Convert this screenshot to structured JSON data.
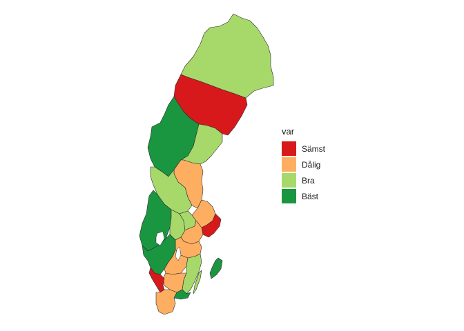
{
  "legend": {
    "title": "var",
    "items": [
      {
        "label": "Sämst",
        "color": "#d7191c"
      },
      {
        "label": "Dålig",
        "color": "#fdae61"
      },
      {
        "label": "Bra",
        "color": "#a6d96a"
      },
      {
        "label": "Bäst",
        "color": "#1a9641"
      }
    ]
  },
  "regions": [
    {
      "id": "norrbotten",
      "category": "Bra"
    },
    {
      "id": "vasterbotten",
      "category": "Sämst"
    },
    {
      "id": "jamtland",
      "category": "Bäst"
    },
    {
      "id": "vasternorrland",
      "category": "Bra"
    },
    {
      "id": "gavleborg",
      "category": "Dålig"
    },
    {
      "id": "dalarna",
      "category": "Bra"
    },
    {
      "id": "varmland",
      "category": "Bäst"
    },
    {
      "id": "orebro",
      "category": "Bra"
    },
    {
      "id": "vastmanland",
      "category": "Bra"
    },
    {
      "id": "uppsala",
      "category": "Dålig"
    },
    {
      "id": "stockholm",
      "category": "Sämst"
    },
    {
      "id": "sodermanland",
      "category": "Dålig"
    },
    {
      "id": "ostergotland",
      "category": "Dålig"
    },
    {
      "id": "vastra-gotaland",
      "category": "Bäst"
    },
    {
      "id": "jonkoping",
      "category": "Dålig"
    },
    {
      "id": "kalmar",
      "category": "Bra"
    },
    {
      "id": "kronoberg",
      "category": "Dålig"
    },
    {
      "id": "halland",
      "category": "Sämst"
    },
    {
      "id": "blekinge",
      "category": "Bäst"
    },
    {
      "id": "skane",
      "category": "Dålig"
    },
    {
      "id": "gotland",
      "category": "Bäst"
    }
  ]
}
